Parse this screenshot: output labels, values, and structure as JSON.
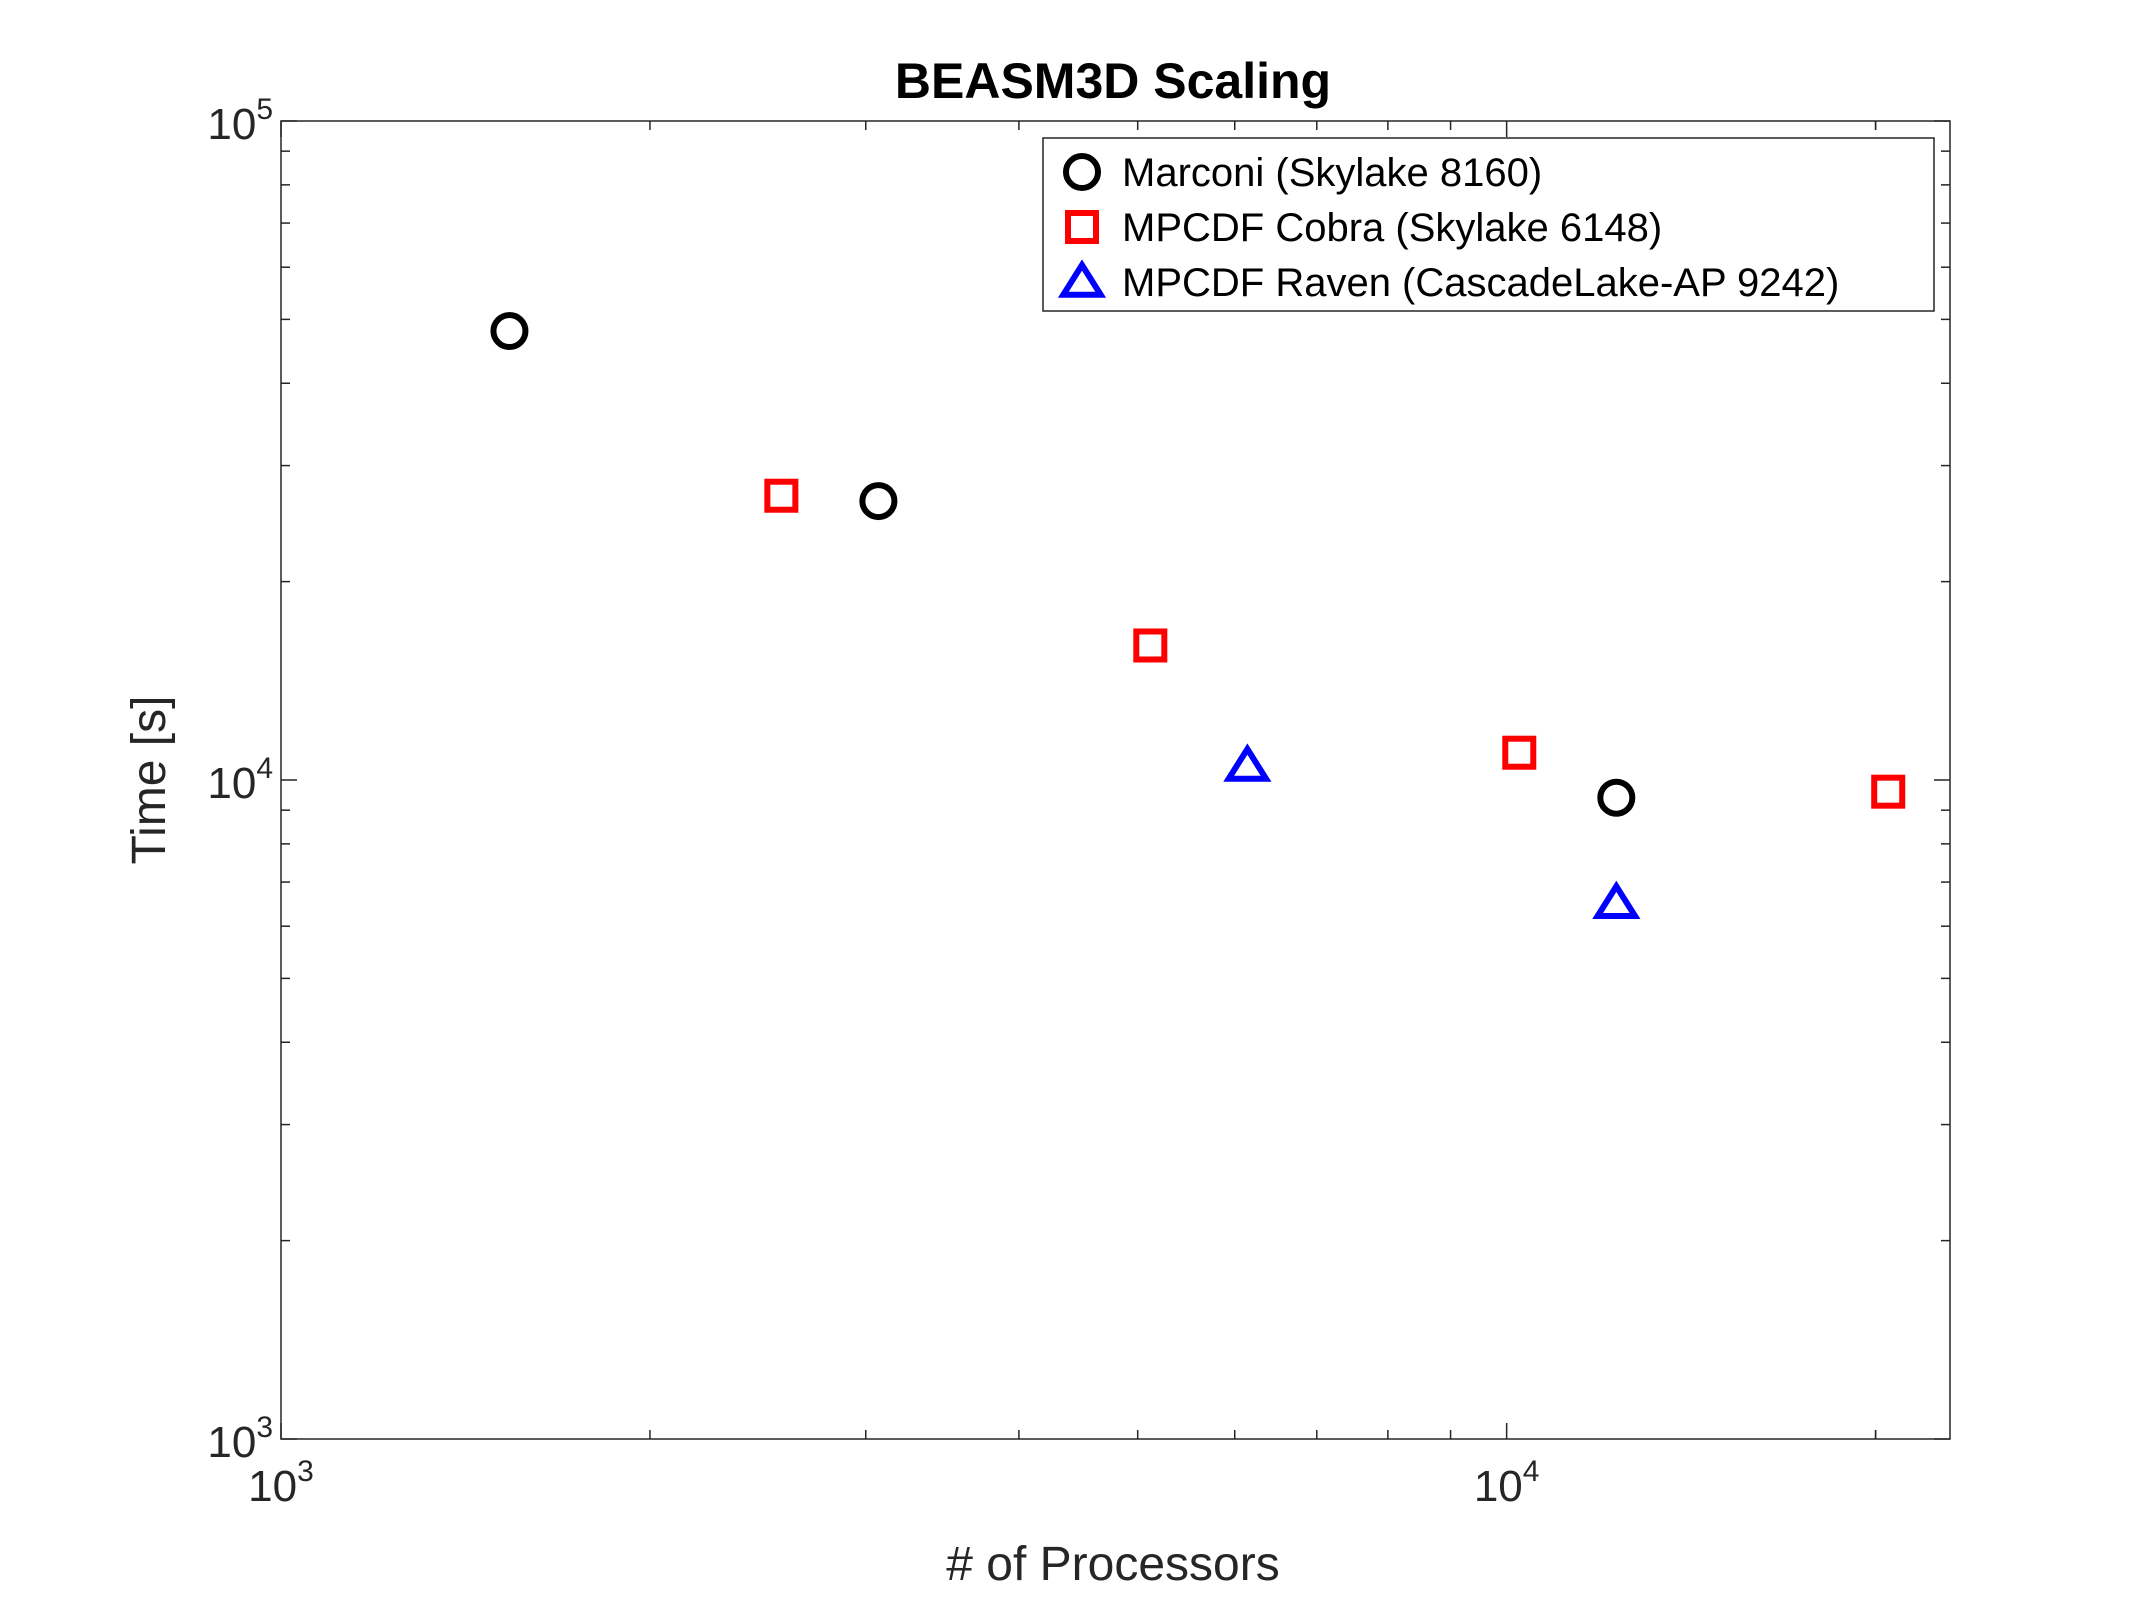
{
  "chart_data": {
    "type": "scatter",
    "title": "BEASM3D Scaling",
    "xlabel": "# of Processors",
    "ylabel": "Time [s]",
    "xscale": "log",
    "yscale": "log",
    "xlim": [
      1000,
      23000
    ],
    "ylim": [
      1000,
      100000
    ],
    "x_tick_labels": [
      {
        "value": 1000,
        "base": "10",
        "exp": "3"
      },
      {
        "value": 10000,
        "base": "10",
        "exp": "4"
      }
    ],
    "y_tick_labels": [
      {
        "value": 1000,
        "base": "10",
        "exp": "3"
      },
      {
        "value": 10000,
        "base": "10",
        "exp": "4"
      },
      {
        "value": 100000,
        "base": "10",
        "exp": "5"
      }
    ],
    "grid": false,
    "legend_position": "top-right",
    "series": [
      {
        "name": "Marconi (Skylake 8160)",
        "marker": "circle",
        "color": "#000000",
        "points": [
          {
            "x": 1536,
            "y": 48000
          },
          {
            "x": 3072,
            "y": 26500
          },
          {
            "x": 12288,
            "y": 9400
          }
        ]
      },
      {
        "name": "MPCDF Cobra (Skylake 6148)",
        "marker": "square",
        "color": "#ff0000",
        "points": [
          {
            "x": 2560,
            "y": 27000
          },
          {
            "x": 5120,
            "y": 16000
          },
          {
            "x": 10240,
            "y": 11000
          },
          {
            "x": 20480,
            "y": 9600
          }
        ]
      },
      {
        "name": "MPCDF Raven (CascadeLake-AP 9242)",
        "marker": "triangle",
        "color": "#0000ff",
        "points": [
          {
            "x": 6144,
            "y": 10500
          },
          {
            "x": 12288,
            "y": 6500
          }
        ]
      }
    ]
  }
}
